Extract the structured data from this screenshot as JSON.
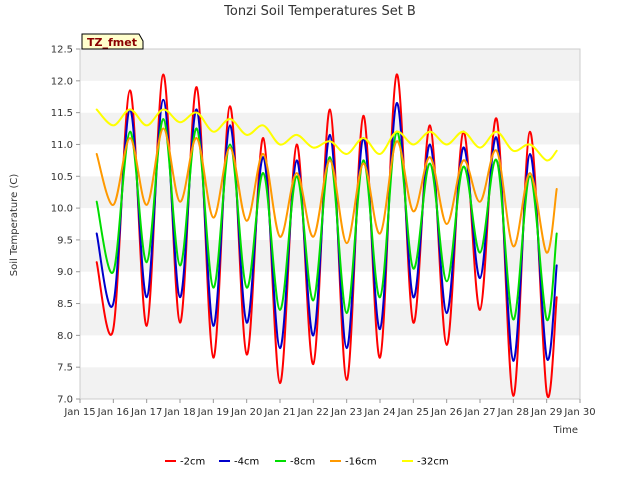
{
  "chart_data": {
    "type": "line",
    "title": "Tonzi Soil Temperatures Set B",
    "xlabel": "Time",
    "ylabel": "Soil Temperature (C)",
    "site_label": "TZ_fmet",
    "x_ticks": [
      "Jan 15",
      "Jan 16",
      "Jan 17",
      "Jan 18",
      "Jan 19",
      "Jan 20",
      "Jan 21",
      "Jan 22",
      "Jan 23",
      "Jan 24",
      "Jan 25",
      "Jan 26",
      "Jan 27",
      "Jan 28",
      "Jan 29",
      "Jan 30"
    ],
    "y_ticks": [
      "7.0",
      "7.5",
      "8.0",
      "8.5",
      "9.0",
      "9.5",
      "10.0",
      "10.5",
      "11.0",
      "11.5",
      "12.0",
      "12.5"
    ],
    "xlim": [
      15,
      30
    ],
    "ylim": [
      7.0,
      12.5
    ],
    "grid": "horizontal alternating bands",
    "legend_position": "bottom-center",
    "x": [
      15.5,
      16.0,
      16.5,
      17.0,
      17.5,
      18.0,
      18.5,
      19.0,
      19.5,
      20.0,
      20.5,
      21.0,
      21.5,
      22.0,
      22.5,
      23.0,
      23.5,
      24.0,
      24.5,
      25.0,
      25.5,
      26.0,
      26.5,
      27.0,
      27.5,
      28.0,
      28.5,
      29.0,
      29.3
    ],
    "series": [
      {
        "name": "-2cm",
        "color": "#ff0000",
        "values": [
          9.15,
          8.1,
          11.85,
          8.15,
          12.1,
          8.2,
          11.9,
          7.65,
          11.6,
          7.7,
          11.1,
          7.25,
          11.0,
          7.55,
          11.55,
          7.3,
          11.45,
          7.65,
          12.1,
          8.2,
          11.3,
          7.85,
          11.2,
          8.4,
          11.4,
          7.05,
          11.2,
          7.1,
          8.6
        ]
      },
      {
        "name": "-4cm",
        "color": "#0000cc",
        "values": [
          9.6,
          8.5,
          11.55,
          8.6,
          11.7,
          8.6,
          11.55,
          8.15,
          11.3,
          8.2,
          10.8,
          7.8,
          10.75,
          8.0,
          11.15,
          7.8,
          11.1,
          8.1,
          11.65,
          8.6,
          11.0,
          8.35,
          10.95,
          8.9,
          11.1,
          7.6,
          10.85,
          7.65,
          9.1
        ]
      },
      {
        "name": "-8cm",
        "color": "#00dd00",
        "values": [
          10.1,
          9.0,
          11.2,
          9.15,
          11.4,
          9.1,
          11.25,
          8.75,
          11.0,
          8.75,
          10.55,
          8.4,
          10.5,
          8.55,
          10.8,
          8.35,
          10.75,
          8.6,
          11.2,
          9.05,
          10.7,
          8.85,
          10.65,
          9.3,
          10.75,
          8.25,
          10.5,
          8.25,
          9.6
        ]
      },
      {
        "name": "-16cm",
        "color": "#ff9900",
        "values": [
          10.85,
          10.05,
          11.1,
          10.05,
          11.25,
          10.1,
          11.1,
          9.85,
          10.95,
          9.8,
          10.85,
          9.55,
          10.55,
          9.55,
          10.75,
          9.45,
          10.7,
          9.6,
          11.05,
          9.95,
          10.8,
          9.75,
          10.75,
          10.1,
          10.9,
          9.4,
          10.55,
          9.3,
          10.3
        ]
      },
      {
        "name": "-32cm",
        "color": "#ffff00",
        "values": [
          11.55,
          11.3,
          11.55,
          11.3,
          11.55,
          11.35,
          11.5,
          11.2,
          11.4,
          11.15,
          11.3,
          11.0,
          11.15,
          10.95,
          11.05,
          10.85,
          11.1,
          10.85,
          11.2,
          11.0,
          11.2,
          11.0,
          11.2,
          10.95,
          11.2,
          10.9,
          11.0,
          10.75,
          10.9
        ]
      }
    ]
  }
}
